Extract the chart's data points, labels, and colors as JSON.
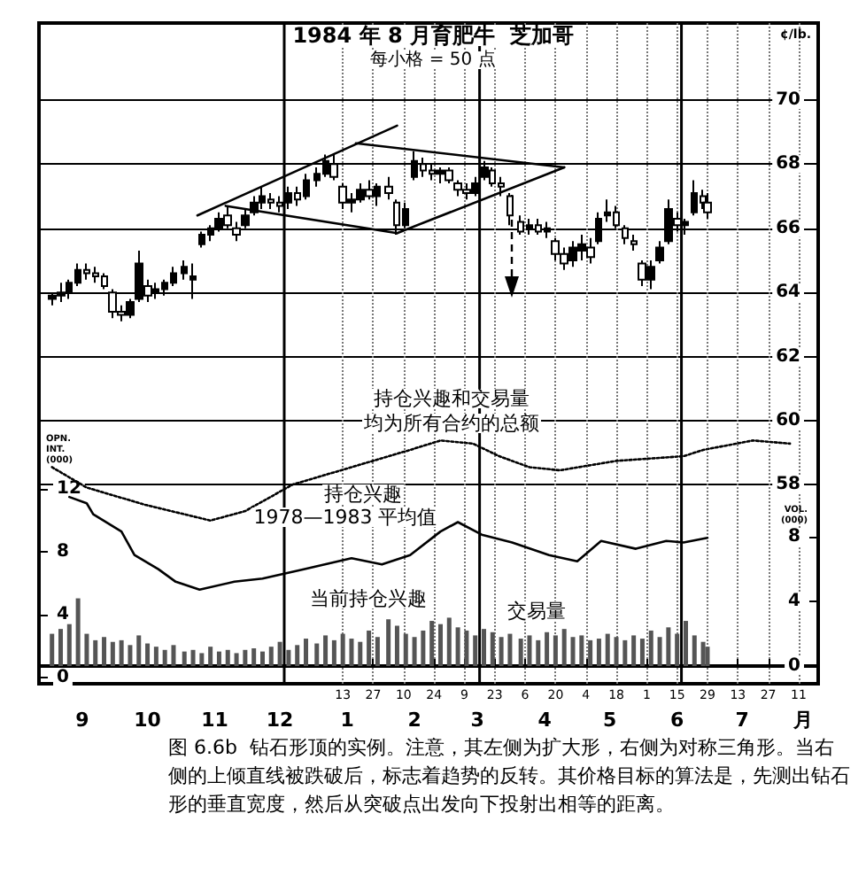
{
  "chart_data": {
    "type": "candlestick",
    "title": "1984 年 8 月育肥牛  芝加哥",
    "subtitle": "每小格 = 50 点",
    "ylabel": "¢/lb.",
    "y2label": "OPN.\nINT.\n(000)",
    "y3label": "VOL.\n(000)",
    "color": "#000000",
    "x": [
      "1983-09-01",
      "1983-09-05",
      "1983-09-09",
      "1983-09-13",
      "1983-09-17",
      "1983-09-21",
      "1983-09-25",
      "1983-09-29",
      "1983-10-03",
      "1983-10-07",
      "1983-10-11",
      "1983-10-15",
      "1983-10-19",
      "1983-10-23",
      "1983-10-27",
      "1983-11-01",
      "1983-11-05",
      "1983-11-09",
      "1983-11-13",
      "1983-11-17",
      "1983-11-21",
      "1983-11-25",
      "1983-11-29",
      "1983-12-03",
      "1983-12-07",
      "1983-12-11",
      "1983-12-15",
      "1983-12-19",
      "1983-12-23",
      "1983-12-27",
      "1984-01-01",
      "1984-01-05",
      "1984-01-09",
      "1984-01-13",
      "1984-01-17",
      "1984-01-21",
      "1984-01-25",
      "1984-01-29",
      "1984-02-03",
      "1984-02-07",
      "1984-02-11",
      "1984-02-15",
      "1984-02-19",
      "1984-02-23",
      "1984-02-27",
      "1984-03-02",
      "1984-03-06",
      "1984-03-10",
      "1984-03-14",
      "1984-03-18",
      "1984-03-22",
      "1984-03-26",
      "1984-03-30",
      "1984-04-04",
      "1984-04-08",
      "1984-04-12",
      "1984-04-16",
      "1984-04-20",
      "1984-04-24",
      "1984-04-28",
      "1984-05-02",
      "1984-05-06",
      "1984-05-10",
      "1984-05-14",
      "1984-05-18",
      "1984-05-22",
      "1984-05-26",
      "1984-05-30",
      "1984-06-03",
      "1984-06-07",
      "1984-06-11",
      "1984-06-15",
      "1984-06-19",
      "1984-06-23",
      "1984-06-27",
      "1984-06-29"
    ],
    "ohlc": [
      [
        63.8,
        64.0,
        63.6,
        63.9
      ],
      [
        63.9,
        64.3,
        63.7,
        64.0
      ],
      [
        64.0,
        64.4,
        63.8,
        64.3
      ],
      [
        64.3,
        64.9,
        64.2,
        64.7
      ],
      [
        64.7,
        64.9,
        64.4,
        64.6
      ],
      [
        64.6,
        64.8,
        64.3,
        64.5
      ],
      [
        64.5,
        64.6,
        64.1,
        64.2
      ],
      [
        64.0,
        64.1,
        63.2,
        63.4
      ],
      [
        63.4,
        63.6,
        63.1,
        63.3
      ],
      [
        63.3,
        63.8,
        63.2,
        63.7
      ],
      [
        63.8,
        65.3,
        63.7,
        64.9
      ],
      [
        64.2,
        64.4,
        63.7,
        63.9
      ],
      [
        64.0,
        64.3,
        63.8,
        64.1
      ],
      [
        64.1,
        64.4,
        63.9,
        64.3
      ],
      [
        64.3,
        64.8,
        64.2,
        64.6
      ],
      [
        64.6,
        65.0,
        64.4,
        64.8
      ],
      [
        64.4,
        64.9,
        63.8,
        64.5
      ],
      [
        65.5,
        65.9,
        65.4,
        65.8
      ],
      [
        65.8,
        66.1,
        65.6,
        66.0
      ],
      [
        66.0,
        66.5,
        65.9,
        66.3
      ],
      [
        66.4,
        66.7,
        66.0,
        66.1
      ],
      [
        66.0,
        66.2,
        65.6,
        65.8
      ],
      [
        66.1,
        66.6,
        66.0,
        66.4
      ],
      [
        66.5,
        67.0,
        66.4,
        66.8
      ],
      [
        66.8,
        67.3,
        66.6,
        67.0
      ],
      [
        66.9,
        67.1,
        66.6,
        66.8
      ],
      [
        66.8,
        67.0,
        66.5,
        66.7
      ],
      [
        66.8,
        67.3,
        66.6,
        67.1
      ],
      [
        67.1,
        67.3,
        66.7,
        66.9
      ],
      [
        67.0,
        67.7,
        66.9,
        67.5
      ],
      [
        67.5,
        67.9,
        67.3,
        67.7
      ],
      [
        67.7,
        68.3,
        67.6,
        68.1
      ],
      [
        68.0,
        68.3,
        67.5,
        67.6
      ],
      [
        67.3,
        67.4,
        66.6,
        66.8
      ],
      [
        66.8,
        67.1,
        66.5,
        66.9
      ],
      [
        66.9,
        67.4,
        66.8,
        67.2
      ],
      [
        67.2,
        67.5,
        66.9,
        67.0
      ],
      [
        67.0,
        67.4,
        66.7,
        67.3
      ],
      [
        67.3,
        67.6,
        66.9,
        67.1
      ],
      [
        66.8,
        66.9,
        65.8,
        66.1
      ],
      [
        66.1,
        66.8,
        66.0,
        66.6
      ],
      [
        67.6,
        68.4,
        67.5,
        68.1
      ],
      [
        68.0,
        68.2,
        67.6,
        67.8
      ],
      [
        67.8,
        68.0,
        67.5,
        67.7
      ],
      [
        67.7,
        67.9,
        67.4,
        67.8
      ],
      [
        67.8,
        67.9,
        67.4,
        67.5
      ],
      [
        67.4,
        67.5,
        67.0,
        67.2
      ],
      [
        67.2,
        67.4,
        66.9,
        67.1
      ],
      [
        67.1,
        67.6,
        67.0,
        67.4
      ],
      [
        67.6,
        68.1,
        67.5,
        67.9
      ],
      [
        67.8,
        67.9,
        67.3,
        67.4
      ],
      [
        67.4,
        67.6,
        67.0,
        67.3
      ],
      [
        67.0,
        67.1,
        66.1,
        66.4
      ],
      [
        66.2,
        66.4,
        65.8,
        65.9
      ],
      [
        66.0,
        66.3,
        65.8,
        66.1
      ],
      [
        66.1,
        66.3,
        65.8,
        65.9
      ],
      [
        65.9,
        66.2,
        65.7,
        66.0
      ],
      [
        65.6,
        65.7,
        65.0,
        65.2
      ],
      [
        65.2,
        65.4,
        64.7,
        64.9
      ],
      [
        65.0,
        65.6,
        64.8,
        65.4
      ],
      [
        65.3,
        65.8,
        65.0,
        65.5
      ],
      [
        65.4,
        65.7,
        64.9,
        65.1
      ],
      [
        65.6,
        66.5,
        65.5,
        66.3
      ],
      [
        66.4,
        66.9,
        66.2,
        66.5
      ],
      [
        66.5,
        66.7,
        66.0,
        66.1
      ],
      [
        66.0,
        66.1,
        65.5,
        65.7
      ],
      [
        65.6,
        65.8,
        65.3,
        65.5
      ],
      [
        64.9,
        65.0,
        64.2,
        64.4
      ],
      [
        64.4,
        65.0,
        64.1,
        64.8
      ],
      [
        65.0,
        65.6,
        64.9,
        65.4
      ],
      [
        65.6,
        66.9,
        65.5,
        66.6
      ],
      [
        66.3,
        66.5,
        65.9,
        66.1
      ],
      [
        66.1,
        66.3,
        65.8,
        66.2
      ],
      [
        66.5,
        67.5,
        66.4,
        67.1
      ],
      [
        67.0,
        67.2,
        66.6,
        66.8
      ],
      [
        66.8,
        67.1,
        66.3,
        66.5
      ]
    ],
    "series": [
      {
        "type": "line",
        "axis": "y2",
        "color": "#000000",
        "line_style": "dotted",
        "x": [
          "1983-09-01",
          "1983-09-17",
          "1983-10-14",
          "1983-11-13",
          "1983-11-29",
          "1983-12-21",
          "1984-01-17",
          "1984-02-13",
          "1984-02-27",
          "1984-03-13",
          "1984-03-25",
          "1984-04-08",
          "1984-04-22",
          "1984-05-18",
          "1984-06-18",
          "1984-06-27",
          "1984-07-20",
          "1984-08-06"
        ],
        "values": [
          13.4,
          12.1,
          11.0,
          10.0,
          10.6,
          12.3,
          13.4,
          14.5,
          15.1,
          14.9,
          14.1,
          13.4,
          13.2,
          13.8,
          14.1,
          14.5,
          15.1,
          14.9
        ]
      },
      {
        "type": "line",
        "axis": "y2",
        "color": "#000000",
        "line_style": "solid",
        "x": [
          "1983-09-09",
          "1983-09-17",
          "1983-09-20",
          "1983-10-03",
          "1983-10-09",
          "1983-10-20",
          "1983-10-28",
          "1983-11-08",
          "1983-11-24",
          "1983-12-07",
          "1983-12-26",
          "1984-01-17",
          "1984-01-31",
          "1984-02-13",
          "1984-02-27",
          "1984-03-06",
          "1984-03-17",
          "1984-03-31",
          "1984-04-17",
          "1984-04-30",
          "1984-05-11",
          "1984-05-27",
          "1984-06-10",
          "1984-06-18",
          "1984-06-29"
        ],
        "values": [
          11.5,
          11.1,
          10.4,
          9.3,
          7.8,
          6.9,
          6.1,
          5.6,
          6.1,
          6.3,
          6.9,
          7.6,
          7.2,
          7.8,
          9.3,
          9.9,
          9.1,
          8.6,
          7.8,
          7.4,
          8.7,
          8.2,
          8.7,
          8.6,
          8.9
        ]
      },
      {
        "type": "bar",
        "axis": "y3",
        "color": "#555555",
        "values": [
          2.0,
          2.3,
          2.6,
          4.2,
          2.0,
          1.6,
          1.8,
          1.5,
          1.6,
          1.3,
          1.9,
          1.4,
          1.2,
          1.0,
          1.3,
          0.9,
          1.0,
          0.8,
          1.2,
          0.9,
          1.0,
          0.8,
          1.0,
          1.1,
          0.9,
          1.2,
          1.5,
          1.0,
          1.3,
          1.7,
          1.4,
          1.9,
          1.6,
          2.0,
          1.7,
          1.5,
          2.2,
          1.8,
          2.9,
          2.5,
          2.0,
          1.8,
          2.2,
          2.8,
          2.6,
          3.0,
          2.4,
          2.2,
          1.9,
          2.3,
          2.1,
          1.8,
          2.0,
          1.7,
          1.9,
          1.6,
          2.1,
          1.9,
          2.3,
          1.8,
          1.9,
          1.6,
          1.7,
          2.0,
          1.8,
          1.6,
          1.9,
          1.7,
          2.2,
          1.8,
          2.4,
          2.0,
          2.8,
          1.9,
          1.5,
          1.2
        ]
      },
      {
        "type": "line",
        "color": "#000000",
        "line_style": "solid",
        "x": [
          "1983-11-07",
          "1984-02-07"
        ],
        "values": [
          66.4,
          69.2
        ]
      },
      {
        "type": "line",
        "color": "#000000",
        "line_style": "solid",
        "x": [
          "1983-11-20",
          "1984-02-07"
        ],
        "values": [
          66.7,
          65.85
        ]
      },
      {
        "type": "line",
        "color": "#000000",
        "line_style": "solid",
        "x": [
          "1984-01-19",
          "1984-04-24"
        ],
        "values": [
          68.65,
          67.9
        ]
      },
      {
        "type": "line",
        "color": "#000000",
        "line_style": "solid",
        "x": [
          "1984-02-07",
          "1984-04-24"
        ],
        "values": [
          65.85,
          67.9
        ]
      }
    ],
    "xlim": [
      "1983-08-26",
      "1984-08-19"
    ],
    "xticks": [
      {
        "value": "1983-09-15",
        "label": "9"
      },
      {
        "value": "1983-10-15",
        "label": "10"
      },
      {
        "value": "1983-11-15",
        "label": "11"
      },
      {
        "value": "1983-12-15",
        "label": "12"
      },
      {
        "value": "1984-01-15",
        "label": "1"
      },
      {
        "value": "1984-02-15",
        "label": "2"
      },
      {
        "value": "1984-03-15",
        "label": "3"
      },
      {
        "value": "1984-04-15",
        "label": "4"
      },
      {
        "value": "1984-05-15",
        "label": "5"
      },
      {
        "value": "1984-06-15",
        "label": "6"
      },
      {
        "value": "1984-07-15",
        "label": "7"
      },
      {
        "value": "1984-08-12",
        "label": "月"
      }
    ],
    "x2lim": [
      "1983-08-26",
      "1984-08-19"
    ],
    "x2ticks": [
      {
        "value": "1984-01-13",
        "label": "13"
      },
      {
        "value": "1984-01-27",
        "label": "27"
      },
      {
        "value": "1984-02-10",
        "label": "10"
      },
      {
        "value": "1984-02-24",
        "label": "24"
      },
      {
        "value": "1984-03-09",
        "label": "9"
      },
      {
        "value": "1984-03-23",
        "label": "23"
      },
      {
        "value": "1984-04-06",
        "label": "6"
      },
      {
        "value": "1984-04-20",
        "label": "20"
      },
      {
        "value": "1984-05-04",
        "label": "4"
      },
      {
        "value": "1984-05-18",
        "label": "18"
      },
      {
        "value": "1984-06-01",
        "label": "1"
      },
      {
        "value": "1984-06-15",
        "label": "15"
      },
      {
        "value": "1984-06-29",
        "label": "29"
      },
      {
        "value": "1984-07-13",
        "label": "13"
      },
      {
        "value": "1984-07-27",
        "label": "27"
      },
      {
        "value": "1984-08-10",
        "label": "11"
      }
    ],
    "ylim": [
      51.8,
      72.4
    ],
    "yticks": [
      58,
      60,
      62,
      64,
      66,
      68,
      70
    ],
    "y2lim": [
      -0.4,
      41.7
    ],
    "y2ticks": [
      0,
      4,
      8,
      12
    ],
    "y3lim": [
      -1.1,
      39.9
    ],
    "y3ticks": [
      0,
      4,
      8
    ],
    "grid": true,
    "ref_lines": [
      {
        "axis": "x",
        "value": "1983-12-17"
      },
      {
        "axis": "x",
        "value": "1984-03-16"
      },
      {
        "axis": "x",
        "value": "1984-06-17"
      }
    ],
    "annotations": [
      "持仓兴趣和交易量",
      "均为所有合约的总额",
      "持仓兴趣",
      "1978—1983 平均值",
      "当前持仓兴趣",
      "交易量",
      "图 6.6b  钻石形顶的实例。注意，其左侧为扩大形，右侧为对称三角形。当右侧的上倾直线被跌破后，标志着趋势的反转。其价格目标的算法是，先测出钻石形的垂直宽度，然后从突破点出发向下投射出相等的距离。"
    ]
  }
}
